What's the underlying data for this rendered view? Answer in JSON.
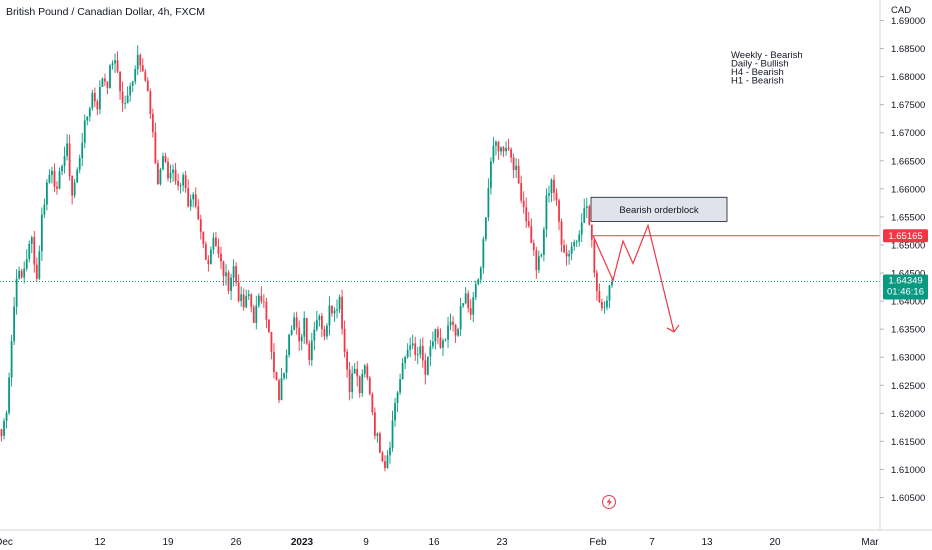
{
  "chart_data": {
    "type": "candlestick",
    "title": "British Pound / Canadian Dollar, 4h, FXCM",
    "currency": "CAD",
    "ylim": [
      1.6015,
      1.6915
    ],
    "y_ticks": [
      "1.69000",
      "1.68500",
      "1.68000",
      "1.67500",
      "1.67000",
      "1.66500",
      "1.66000",
      "1.65500",
      "1.65000",
      "1.64500",
      "1.64000",
      "1.63500",
      "1.63000",
      "1.62500",
      "1.62000",
      "1.61500",
      "1.61000",
      "1.60500"
    ],
    "x_labels": [
      {
        "label": "Dec",
        "bold": false
      },
      {
        "label": "12",
        "bold": false
      },
      {
        "label": "19",
        "bold": false
      },
      {
        "label": "26",
        "bold": false
      },
      {
        "label": "2023",
        "bold": true
      },
      {
        "label": "9",
        "bold": false
      },
      {
        "label": "16",
        "bold": false
      },
      {
        "label": "23",
        "bold": false
      },
      {
        "label": "Feb",
        "bold": false
      },
      {
        "label": "7",
        "bold": false
      },
      {
        "label": "13",
        "bold": false
      },
      {
        "label": "20",
        "bold": false
      },
      {
        "label": "Mar",
        "bold": false
      }
    ],
    "bias_notes": [
      "Weekly - Bearish",
      "Daily - Bullish",
      "H4 - Bearish",
      "H1 - Bearish"
    ],
    "orderblock": {
      "label": "Bearish orderblock",
      "top": 1.6585,
      "bottom": 1.6542
    },
    "level_line": {
      "value": "1.65165",
      "color": "#f23645"
    },
    "last_price": {
      "value": "1.64349",
      "countdown": "01:46:16",
      "color": "#089981"
    },
    "projection_path": [
      1.6517,
      1.6437,
      1.6507,
      1.6467,
      1.6535,
      1.6345
    ],
    "up_color": "#089981",
    "down_color": "#f23645",
    "anchors": [
      [
        0,
        1.616
      ],
      [
        2,
        1.621
      ],
      [
        4,
        1.633
      ],
      [
        6,
        1.645
      ],
      [
        8,
        1.644
      ],
      [
        10,
        1.648
      ],
      [
        12,
        1.651
      ],
      [
        14,
        1.644
      ],
      [
        16,
        1.655
      ],
      [
        18,
        1.661
      ],
      [
        20,
        1.664
      ],
      [
        22,
        1.659
      ],
      [
        24,
        1.665
      ],
      [
        26,
        1.667
      ],
      [
        28,
        1.659
      ],
      [
        30,
        1.663
      ],
      [
        32,
        1.669
      ],
      [
        34,
        1.673
      ],
      [
        36,
        1.677
      ],
      [
        38,
        1.675
      ],
      [
        40,
        1.68
      ],
      [
        42,
        1.679
      ],
      [
        44,
        1.683
      ],
      [
        46,
        1.681
      ],
      [
        48,
        1.675
      ],
      [
        50,
        1.676
      ],
      [
        52,
        1.68
      ],
      [
        54,
        1.684
      ],
      [
        56,
        1.682
      ],
      [
        58,
        1.677
      ],
      [
        60,
        1.669
      ],
      [
        62,
        1.661
      ],
      [
        64,
        1.666
      ],
      [
        66,
        1.662
      ],
      [
        68,
        1.664
      ],
      [
        70,
        1.66
      ],
      [
        72,
        1.663
      ],
      [
        74,
        1.656
      ],
      [
        76,
        1.658
      ],
      [
        78,
        1.654
      ],
      [
        80,
        1.65
      ],
      [
        82,
        1.647
      ],
      [
        84,
        1.652
      ],
      [
        86,
        1.648
      ],
      [
        88,
        1.645
      ],
      [
        90,
        1.643
      ],
      [
        92,
        1.646
      ],
      [
        94,
        1.641
      ],
      [
        96,
        1.639
      ],
      [
        98,
        1.641
      ],
      [
        100,
        1.637
      ],
      [
        102,
        1.64
      ],
      [
        104,
        1.641
      ],
      [
        106,
        1.634
      ],
      [
        108,
        1.627
      ],
      [
        110,
        1.623
      ],
      [
        112,
        1.628
      ],
      [
        114,
        1.635
      ],
      [
        116,
        1.637
      ],
      [
        118,
        1.632
      ],
      [
        120,
        1.637
      ],
      [
        122,
        1.63
      ],
      [
        124,
        1.636
      ],
      [
        126,
        1.638
      ],
      [
        128,
        1.633
      ],
      [
        130,
        1.64
      ],
      [
        132,
        1.638
      ],
      [
        134,
        1.641
      ],
      [
        136,
        1.631
      ],
      [
        138,
        1.625
      ],
      [
        140,
        1.628
      ],
      [
        142,
        1.624
      ],
      [
        144,
        1.628
      ],
      [
        146,
        1.624
      ],
      [
        148,
        1.617
      ],
      [
        150,
        1.614
      ],
      [
        152,
        1.611
      ],
      [
        154,
        1.615
      ],
      [
        156,
        1.622
      ],
      [
        158,
        1.626
      ],
      [
        160,
        1.63
      ],
      [
        162,
        1.633
      ],
      [
        164,
        1.63
      ],
      [
        166,
        1.631
      ],
      [
        168,
        1.627
      ],
      [
        170,
        1.631
      ],
      [
        172,
        1.635
      ],
      [
        174,
        1.631
      ],
      [
        176,
        1.633
      ],
      [
        178,
        1.636
      ],
      [
        180,
        1.634
      ],
      [
        182,
        1.638
      ],
      [
        184,
        1.641
      ],
      [
        186,
        1.637
      ],
      [
        188,
        1.643
      ],
      [
        190,
        1.645
      ],
      [
        192,
        1.656
      ],
      [
        194,
        1.665
      ],
      [
        196,
        1.668
      ],
      [
        198,
        1.667
      ],
      [
        200,
        1.668
      ],
      [
        202,
        1.666
      ],
      [
        204,
        1.663
      ],
      [
        206,
        1.659
      ],
      [
        208,
        1.655
      ],
      [
        210,
        1.651
      ],
      [
        212,
        1.646
      ],
      [
        214,
        1.648
      ],
      [
        216,
        1.658
      ],
      [
        218,
        1.662
      ],
      [
        220,
        1.657
      ],
      [
        222,
        1.651
      ],
      [
        224,
        1.648
      ],
      [
        226,
        1.65
      ],
      [
        228,
        1.651
      ],
      [
        230,
        1.655
      ],
      [
        232,
        1.657
      ],
      [
        234,
        1.65
      ],
      [
        236,
        1.642
      ],
      [
        238,
        1.639
      ],
      [
        240,
        1.641
      ],
      [
        242,
        1.6435
      ]
    ]
  }
}
